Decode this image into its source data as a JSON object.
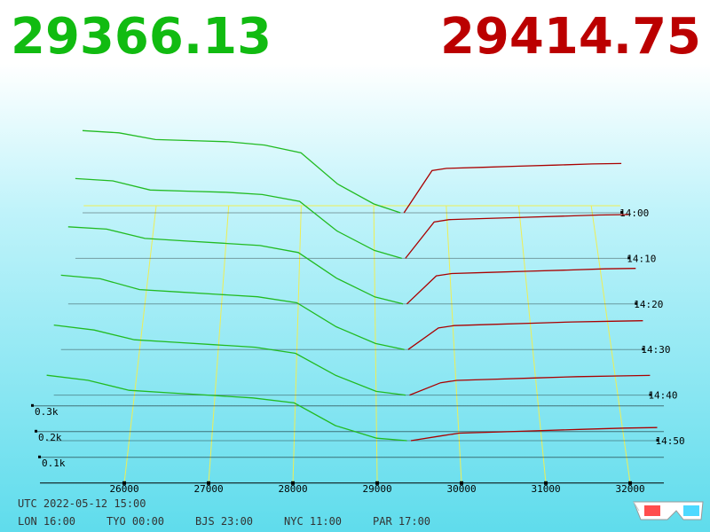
{
  "chart_data": {
    "type": "depth3d",
    "bid_price": "29366.13",
    "ask_price": "29414.75",
    "bid_color": "#22bb22",
    "ask_color": "#aa0000",
    "xlim": [
      25000,
      32400
    ],
    "xticks": [
      26000,
      27000,
      28000,
      29000,
      30000,
      31000,
      32000
    ],
    "yticks": [
      {
        "value": 100,
        "label": "0.1k"
      },
      {
        "value": 200,
        "label": "0.2k"
      },
      {
        "value": 300,
        "label": "0.3k"
      }
    ],
    "zticks": [
      "14:00",
      "14:10",
      "14:20",
      "14:30",
      "14:40",
      "14:50"
    ],
    "bid_x": [
      25000,
      25500,
      26000,
      26500,
      27000,
      27500,
      28000,
      28500,
      29000,
      29366
    ],
    "ask_x": [
      29415,
      29800,
      30000,
      30500,
      31000,
      31500,
      32000,
      32400
    ],
    "snapshots": [
      {
        "bids": [
          370,
          360,
          330,
          325,
          320,
          305,
          270,
          130,
          40,
          0
        ],
        "asks": [
          0,
          190,
          200,
          205,
          210,
          215,
          220,
          222
        ]
      },
      {
        "bids": [
          350,
          340,
          300,
          295,
          290,
          280,
          250,
          120,
          35,
          0
        ],
        "asks": [
          0,
          160,
          170,
          175,
          180,
          185,
          190,
          192
        ]
      },
      {
        "bids": [
          330,
          320,
          280,
          270,
          260,
          250,
          220,
          110,
          30,
          0
        ],
        "asks": [
          0,
          120,
          130,
          135,
          140,
          145,
          150,
          152
        ]
      },
      {
        "bids": [
          310,
          295,
          250,
          240,
          230,
          220,
          195,
          95,
          25,
          0
        ],
        "asks": [
          0,
          90,
          100,
          105,
          110,
          115,
          118,
          120
        ]
      },
      {
        "bids": [
          285,
          265,
          225,
          215,
          205,
          195,
          170,
          80,
          15,
          0
        ],
        "asks": [
          0,
          50,
          60,
          65,
          70,
          75,
          78,
          80
        ]
      },
      {
        "bids": [
          260,
          240,
          200,
          190,
          180,
          170,
          150,
          60,
          10,
          0
        ],
        "asks": [
          0,
          20,
          30,
          35,
          40,
          45,
          50,
          52
        ]
      }
    ],
    "clock": "UTC 2022-05-12 15:00",
    "zones": [
      "LON 16:00",
      "TYO 00:00",
      "BJS 23:00",
      "NYC 11:00",
      "PAR 17:00"
    ]
  }
}
